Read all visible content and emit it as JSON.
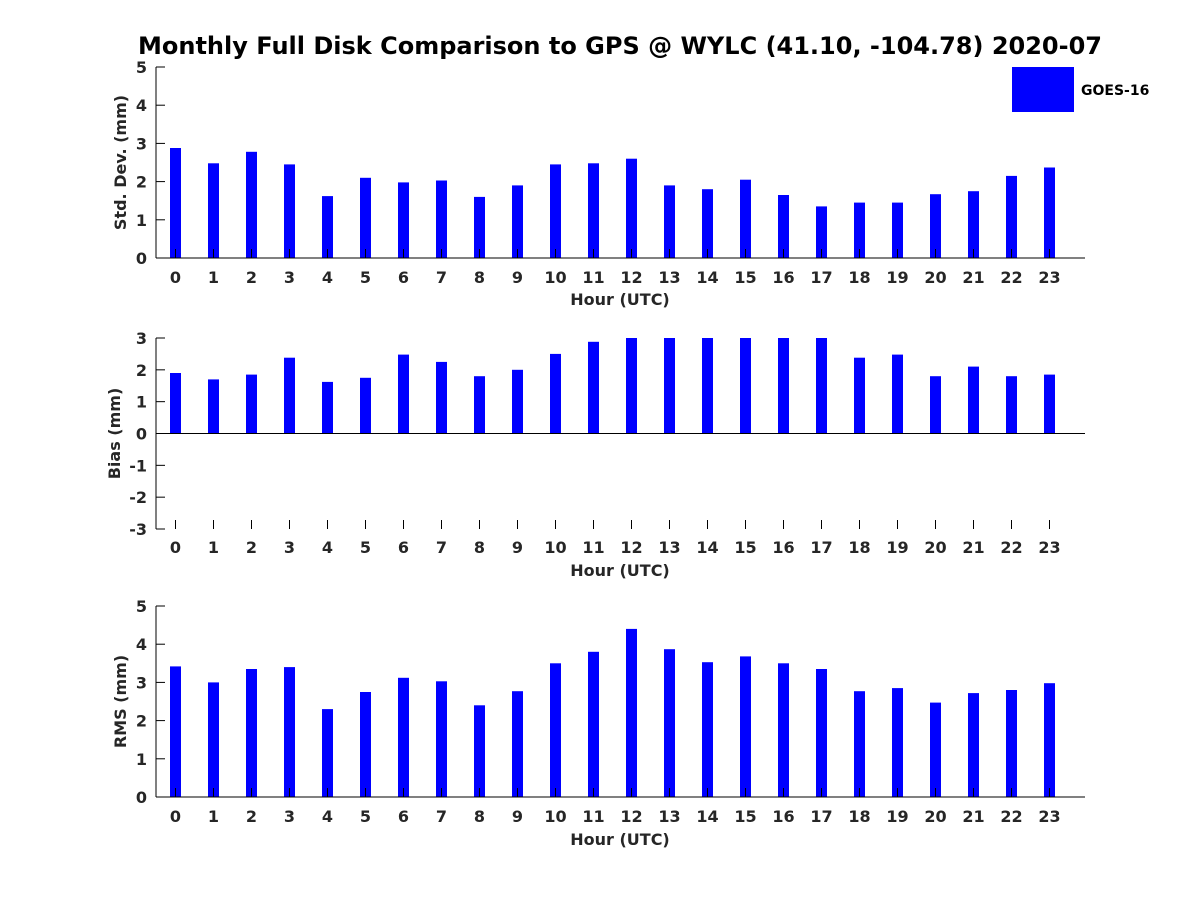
{
  "title": "Monthly Full Disk Comparison to GPS @ WYLC (41.10, -104.78) 2020-07",
  "legend": {
    "label": "GOES-16",
    "color": "#0000ff",
    "placement": "top-right"
  },
  "chart_data": [
    {
      "type": "bar",
      "categories": [
        "0",
        "1",
        "2",
        "3",
        "4",
        "5",
        "6",
        "7",
        "8",
        "9",
        "10",
        "11",
        "12",
        "13",
        "14",
        "15",
        "16",
        "17",
        "18",
        "19",
        "20",
        "21",
        "22",
        "23"
      ],
      "series": [
        {
          "name": "GOES-16",
          "values": [
            2.88,
            2.48,
            2.78,
            2.45,
            1.62,
            2.1,
            1.98,
            2.03,
            1.6,
            1.9,
            2.45,
            2.48,
            2.6,
            1.9,
            1.8,
            2.05,
            1.65,
            1.35,
            1.45,
            1.45,
            1.67,
            1.75,
            2.15,
            2.37
          ]
        }
      ],
      "xlabel": "Hour (UTC)",
      "ylabel": "Std. Dev. (mm)",
      "ylim": [
        0,
        5
      ],
      "yticks": [
        "0",
        "1",
        "2",
        "3",
        "4",
        "5"
      ],
      "grid": false
    },
    {
      "type": "bar",
      "categories": [
        "0",
        "1",
        "2",
        "3",
        "4",
        "5",
        "6",
        "7",
        "8",
        "9",
        "10",
        "11",
        "12",
        "13",
        "14",
        "15",
        "16",
        "17",
        "18",
        "19",
        "20",
        "21",
        "22",
        "23"
      ],
      "series": [
        {
          "name": "GOES-16",
          "values": [
            1.9,
            1.7,
            1.85,
            2.38,
            1.62,
            1.75,
            2.48,
            2.25,
            1.8,
            2.0,
            2.5,
            2.88,
            3.0,
            3.0,
            3.0,
            3.0,
            3.0,
            3.0,
            2.38,
            2.48,
            1.8,
            2.1,
            1.8,
            1.85
          ]
        }
      ],
      "xlabel": "Hour (UTC)",
      "ylabel": "Bias (mm)",
      "ylim": [
        -3,
        3
      ],
      "yticks": [
        "-3",
        "-2",
        "-1",
        "0",
        "1",
        "2",
        "3"
      ],
      "grid": false
    },
    {
      "type": "bar",
      "categories": [
        "0",
        "1",
        "2",
        "3",
        "4",
        "5",
        "6",
        "7",
        "8",
        "9",
        "10",
        "11",
        "12",
        "13",
        "14",
        "15",
        "16",
        "17",
        "18",
        "19",
        "20",
        "21",
        "22",
        "23"
      ],
      "series": [
        {
          "name": "GOES-16",
          "values": [
            3.42,
            3.0,
            3.35,
            3.4,
            2.3,
            2.75,
            3.12,
            3.03,
            2.4,
            2.77,
            3.5,
            3.8,
            4.4,
            3.87,
            3.53,
            3.68,
            3.5,
            3.35,
            2.77,
            2.85,
            2.47,
            2.72,
            2.8,
            2.98
          ]
        }
      ],
      "xlabel": "Hour (UTC)",
      "ylabel": "RMS (mm)",
      "ylim": [
        0,
        5
      ],
      "yticks": [
        "0",
        "1",
        "2",
        "3",
        "4",
        "5"
      ],
      "grid": false
    }
  ]
}
